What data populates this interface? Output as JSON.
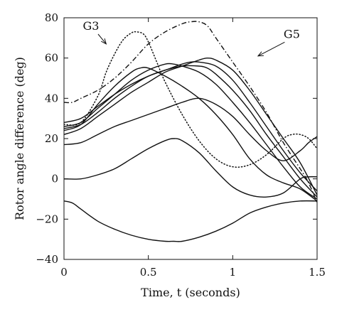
{
  "chart_data": {
    "type": "line",
    "xlabel": "Time, t (seconds)",
    "ylabel": "Rotor angle difference (deg)",
    "xlim": [
      0,
      1.5
    ],
    "ylim": [
      -40,
      80
    ],
    "xticks": [
      0,
      0.5,
      1,
      1.5
    ],
    "xtick_labels": [
      "0",
      "0.5",
      "1",
      "1.5"
    ],
    "yticks": [
      -40,
      -20,
      0,
      20,
      40,
      60,
      80
    ],
    "ytick_labels": [
      "−40",
      "−20",
      "0",
      "20",
      "40",
      "60",
      "80"
    ],
    "grid": false,
    "legend": "none",
    "annotations": [
      {
        "text": "G3",
        "series": "G3",
        "text_at": [
          0.16,
          74
        ],
        "arrow_to": [
          0.25,
          67
        ]
      },
      {
        "text": "G5",
        "series": "G5",
        "text_at": [
          1.35,
          70
        ],
        "arrow_to": [
          1.15,
          61
        ]
      }
    ],
    "series": [
      {
        "name": "G3",
        "style": "dotted",
        "x": [
          0,
          0.1,
          0.2,
          0.25,
          0.3,
          0.35,
          0.4,
          0.43,
          0.47,
          0.5,
          0.55,
          0.6,
          0.7,
          0.8,
          0.9,
          1.0,
          1.1,
          1.2,
          1.3,
          1.35,
          1.4,
          1.45,
          1.5
        ],
        "y": [
          27,
          28,
          41,
          53,
          62,
          69,
          72.5,
          73,
          72,
          68,
          58,
          48,
          32,
          19,
          10,
          6,
          7,
          12,
          20,
          22,
          22,
          20,
          15
        ]
      },
      {
        "name": "G5",
        "style": "dashdot",
        "x": [
          0,
          0.05,
          0.1,
          0.2,
          0.3,
          0.4,
          0.5,
          0.6,
          0.7,
          0.75,
          0.8,
          0.85,
          0.9,
          1.0,
          1.1,
          1.2,
          1.3,
          1.4,
          1.45,
          1.5
        ],
        "y": [
          38,
          38,
          40,
          44,
          50,
          58,
          67,
          73,
          77,
          78,
          78,
          76,
          70,
          58,
          46,
          33,
          18,
          5,
          -2,
          -12
        ]
      },
      {
        "style": "solid",
        "x": [
          0,
          0.1,
          0.2,
          0.3,
          0.4,
          0.45,
          0.5,
          0.6,
          0.7,
          0.8,
          0.9,
          1.0,
          1.1,
          1.2,
          1.3,
          1.4,
          1.5
        ],
        "y": [
          24,
          27,
          37,
          46,
          53,
          55,
          55,
          51,
          46,
          40,
          32,
          22,
          10,
          2,
          -2,
          -5,
          -11
        ]
      },
      {
        "style": "solid",
        "x": [
          0,
          0.1,
          0.2,
          0.3,
          0.4,
          0.5,
          0.6,
          0.65,
          0.7,
          0.8,
          0.9,
          1.0,
          1.1,
          1.2,
          1.3,
          1.4,
          1.5
        ],
        "y": [
          26,
          28,
          35,
          42,
          49,
          54,
          57,
          57,
          56,
          53,
          47,
          38,
          28,
          17,
          6,
          -4,
          -10
        ]
      },
      {
        "style": "solid",
        "x": [
          0,
          0.1,
          0.2,
          0.3,
          0.4,
          0.5,
          0.6,
          0.7,
          0.8,
          0.85,
          0.9,
          1.0,
          1.1,
          1.2,
          1.3,
          1.4,
          1.5
        ],
        "y": [
          25,
          27,
          33,
          40,
          46,
          51,
          54,
          56,
          56,
          55,
          52,
          44,
          34,
          22,
          11,
          0,
          -9
        ]
      },
      {
        "style": "solid",
        "x": [
          0,
          0.1,
          0.2,
          0.3,
          0.4,
          0.5,
          0.6,
          0.7,
          0.75,
          0.8,
          0.9,
          1.0,
          1.1,
          1.2,
          1.3,
          1.4,
          1.5
        ],
        "y": [
          28,
          30,
          36,
          42,
          47,
          51,
          54,
          57,
          58,
          58,
          56,
          49,
          38,
          26,
          14,
          3,
          -6
        ]
      },
      {
        "style": "solid",
        "x": [
          0,
          0.1,
          0.2,
          0.3,
          0.4,
          0.5,
          0.6,
          0.7,
          0.8,
          0.85,
          0.9,
          1.0,
          1.1,
          1.2,
          1.3,
          1.4,
          1.5
        ],
        "y": [
          22,
          25,
          31,
          37,
          43,
          48,
          53,
          56,
          59,
          60,
          59,
          54,
          44,
          32,
          20,
          8,
          -8
        ]
      },
      {
        "style": "solid",
        "x": [
          0,
          0.1,
          0.2,
          0.3,
          0.4,
          0.5,
          0.6,
          0.7,
          0.8,
          0.9,
          1.0,
          1.1,
          1.2,
          1.3,
          1.4,
          1.45,
          1.5
        ],
        "y": [
          17,
          18,
          22,
          26,
          29,
          32,
          35,
          38,
          40,
          37,
          31,
          22,
          14,
          9,
          14,
          18,
          21
        ]
      },
      {
        "style": "solid",
        "x": [
          0,
          0.1,
          0.2,
          0.3,
          0.4,
          0.5,
          0.6,
          0.65,
          0.7,
          0.8,
          0.9,
          1.0,
          1.1,
          1.2,
          1.3,
          1.4,
          1.45,
          1.5
        ],
        "y": [
          0,
          0,
          2,
          5,
          10,
          15,
          19,
          20,
          19,
          13,
          4,
          -4,
          -8,
          -9,
          -7,
          0,
          1,
          1
        ]
      },
      {
        "style": "solid",
        "x": [
          0,
          0.05,
          0.1,
          0.2,
          0.3,
          0.4,
          0.5,
          0.6,
          0.65,
          0.7,
          0.8,
          0.9,
          1.0,
          1.1,
          1.2,
          1.3,
          1.4,
          1.5
        ],
        "y": [
          -11,
          -12,
          -15,
          -21,
          -25,
          -28,
          -30,
          -31,
          -31,
          -31,
          -29,
          -26,
          -22,
          -17,
          -14,
          -12,
          -11,
          -11
        ]
      }
    ]
  }
}
